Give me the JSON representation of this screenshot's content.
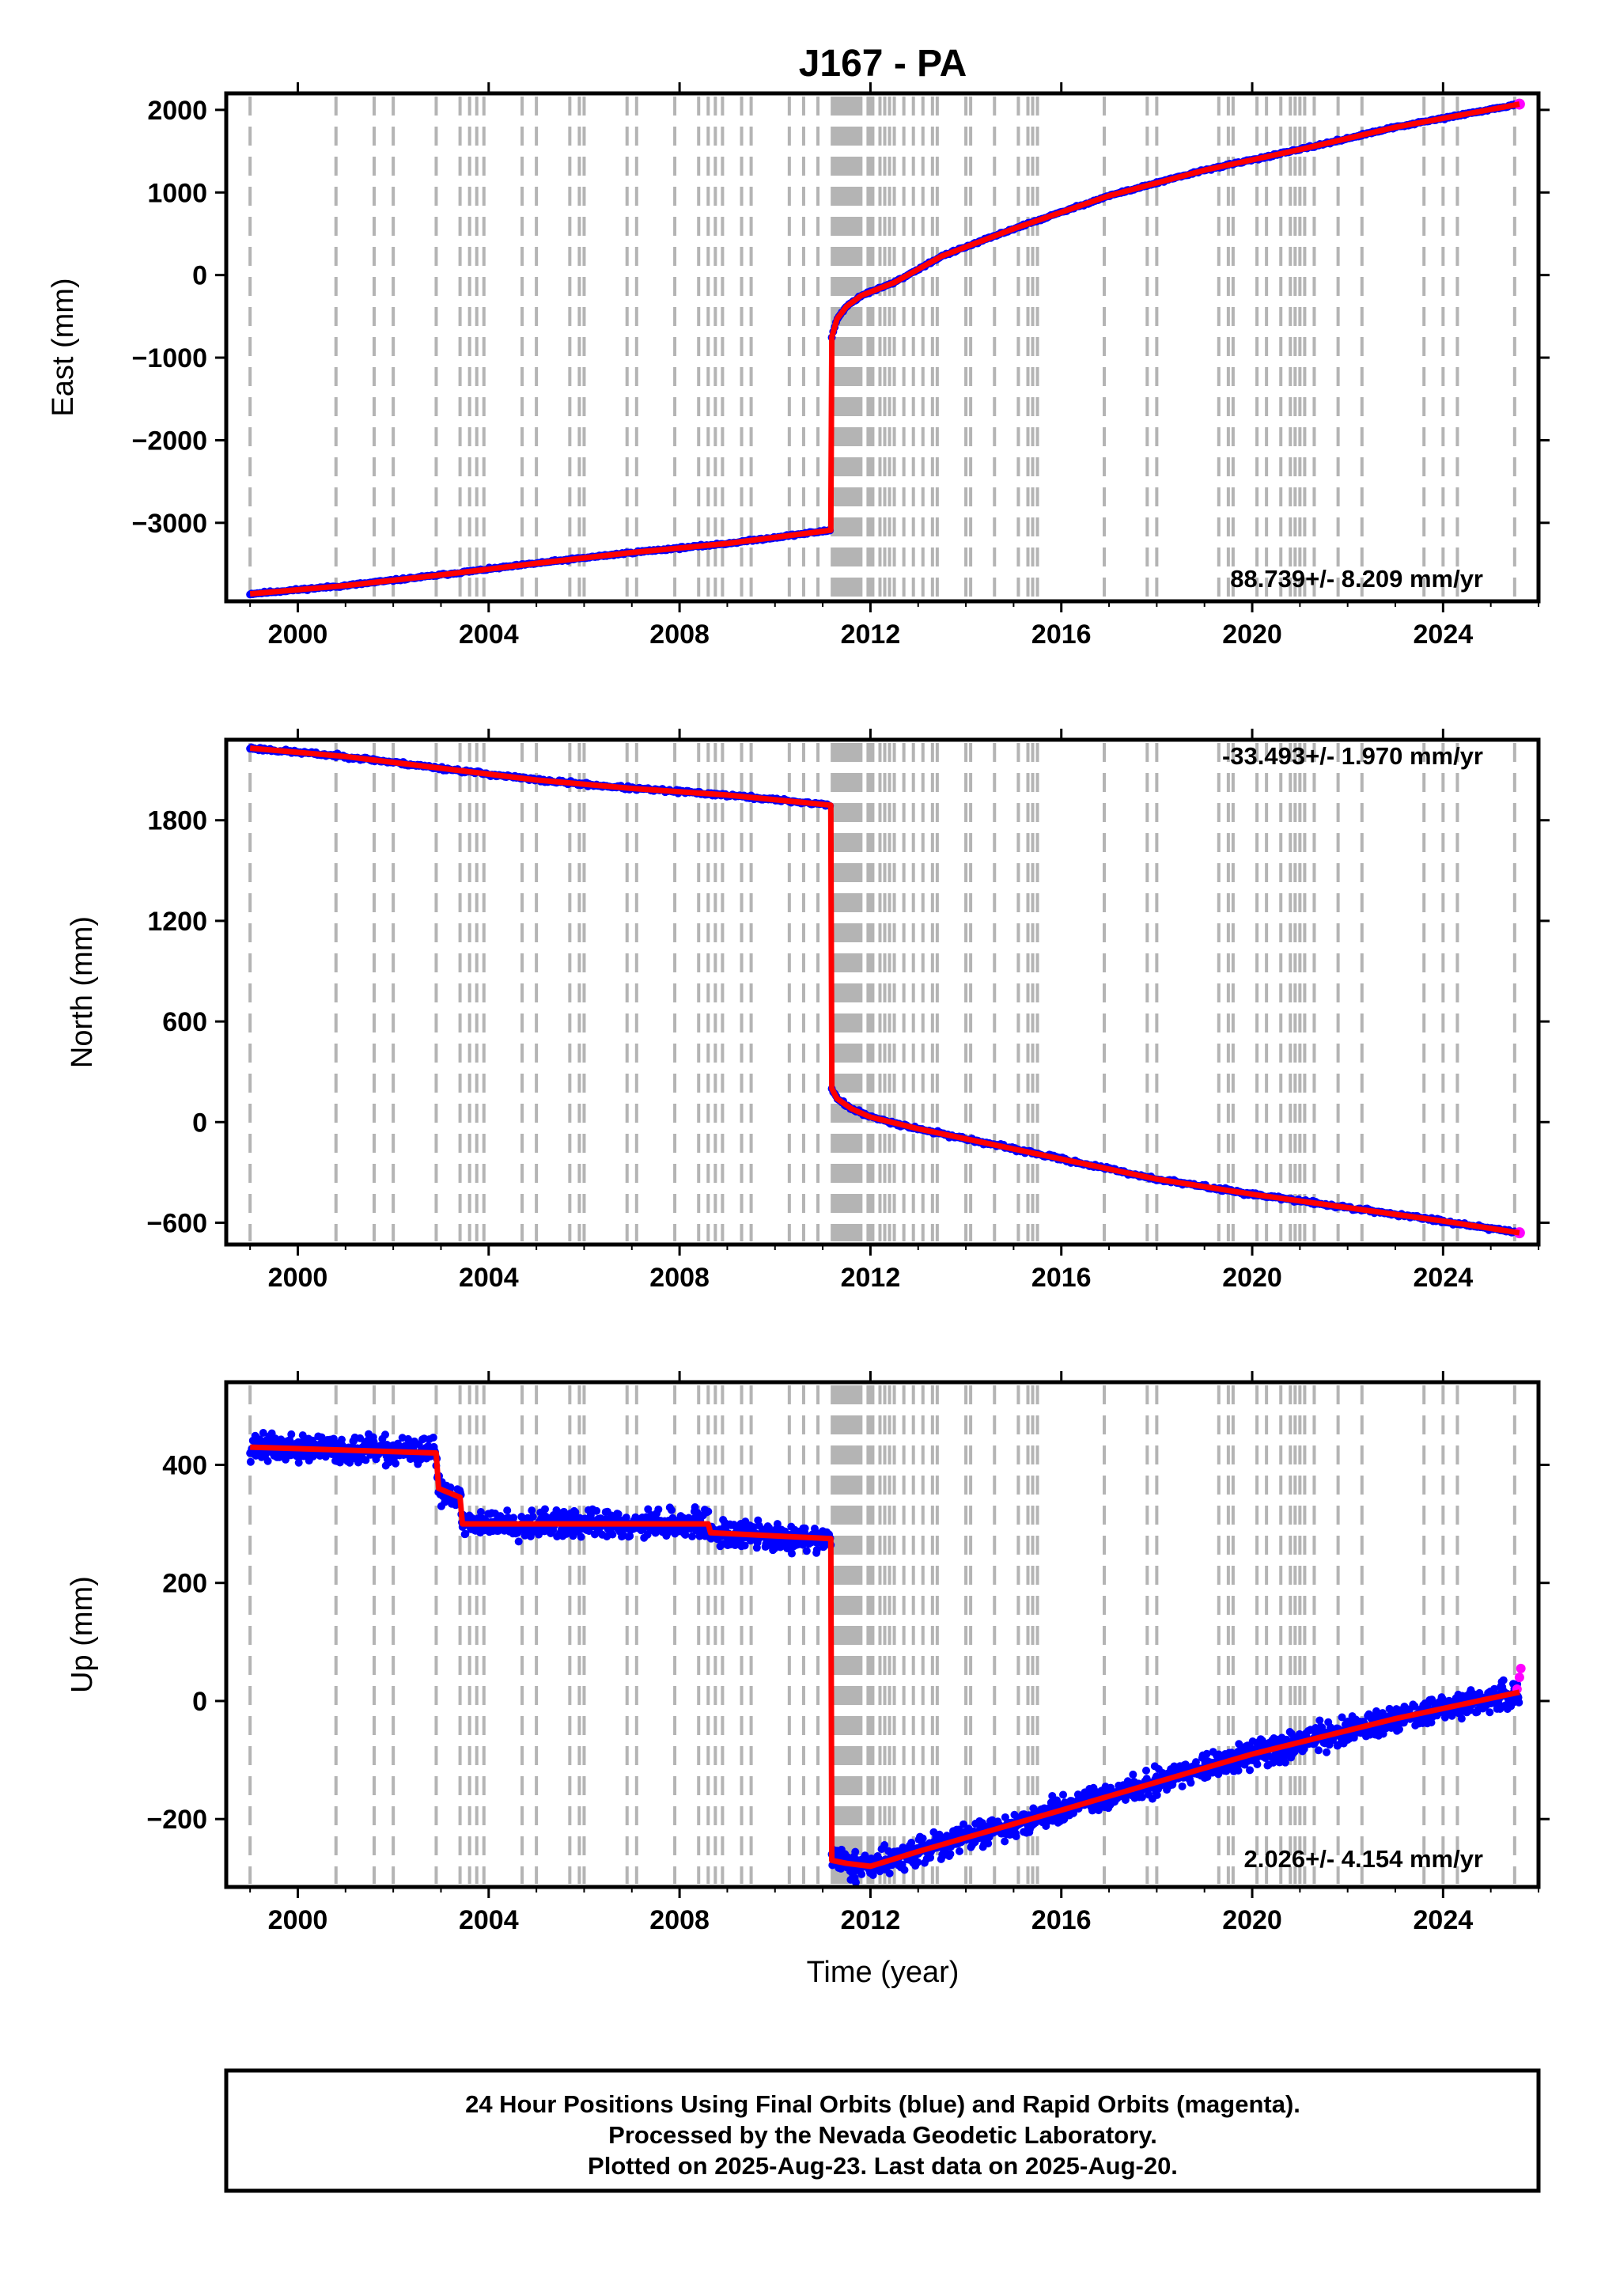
{
  "title": "J167 - PA",
  "colors": {
    "final_orbits": "#0000ff",
    "rapid_orbits": "#ff00ff",
    "model": "#ff0000",
    "event_lines": "#b4b4b4",
    "frame": "#000000"
  },
  "footer": {
    "line1": "24 Hour Positions Using Final Orbits (blue) and Rapid Orbits (magenta).",
    "line2": "Processed by the Nevada Geodetic Laboratory.",
    "line3": "Plotted on 2025-Aug-23. Last data on 2025-Aug-20."
  },
  "chart_data": [
    {
      "type": "scatter",
      "panel": "east",
      "title": "J167 - PA",
      "xlabel": "",
      "ylabel": "East (mm)",
      "xlim": [
        1998.5,
        2026.0
      ],
      "ylim": [
        -3950,
        2200
      ],
      "xticks": [
        2000,
        2004,
        2008,
        2012,
        2016,
        2020,
        2024
      ],
      "yticks": [
        -3000,
        -2000,
        -1000,
        0,
        1000,
        2000
      ],
      "rate_text": "88.739+/- 8.209 mm/yr",
      "rate_position": "bottom-right",
      "series": [
        {
          "segment": "pre-earthquake",
          "x": [
            1999.0,
            2001.0,
            2003.0,
            2005.0,
            2007.0,
            2009.0,
            2011.17
          ],
          "y": [
            -3860,
            -3760,
            -3630,
            -3490,
            -3360,
            -3250,
            -3090
          ]
        },
        {
          "segment": "post-earthquake",
          "x": [
            2011.19,
            2011.3,
            2011.5,
            2011.8,
            2012.5,
            2013.5,
            2015.0,
            2017.0,
            2019.0,
            2021.0,
            2023.0,
            2025.6
          ],
          "y": [
            -750,
            -530,
            -380,
            -250,
            -90,
            230,
            560,
            960,
            1270,
            1520,
            1790,
            2070
          ]
        }
      ]
    },
    {
      "type": "scatter",
      "panel": "north",
      "xlabel": "",
      "ylabel": "North (mm)",
      "xlim": [
        1998.5,
        2026.0
      ],
      "ylim": [
        -730,
        2280
      ],
      "xticks": [
        2000,
        2004,
        2008,
        2012,
        2016,
        2020,
        2024
      ],
      "yticks": [
        -600,
        0,
        600,
        1200,
        1800
      ],
      "rate_text": "-33.493+/- 1.970 mm/yr",
      "rate_position": "top-right",
      "series": [
        {
          "segment": "pre-earthquake",
          "x": [
            1999.0,
            2001.0,
            2003.0,
            2005.0,
            2007.0,
            2009.0,
            2011.17
          ],
          "y": [
            2230,
            2180,
            2110,
            2040,
            1990,
            1950,
            1890
          ]
        },
        {
          "segment": "post-earthquake",
          "x": [
            2011.19,
            2011.3,
            2011.6,
            2012.0,
            2013.0,
            2014.5,
            2016.0,
            2018.0,
            2020.0,
            2022.0,
            2024.0,
            2025.6
          ],
          "y": [
            200,
            140,
            80,
            30,
            -40,
            -130,
            -220,
            -340,
            -430,
            -510,
            -590,
            -660
          ]
        }
      ]
    },
    {
      "type": "scatter",
      "panel": "up",
      "xlabel": "Time (year)",
      "ylabel": "Up (mm)",
      "xlim": [
        1998.5,
        2026.0
      ],
      "ylim": [
        -315,
        540
      ],
      "xticks": [
        2000,
        2004,
        2008,
        2012,
        2016,
        2020,
        2024
      ],
      "yticks": [
        -200,
        0,
        200,
        400
      ],
      "rate_text": "2.026+/- 4.154 mm/yr",
      "rate_position": "bottom-right",
      "series": [
        {
          "segment": "pre-earthquake",
          "x": [
            1999.0,
            2002.9,
            2002.95,
            2003.4,
            2003.45,
            2008.6,
            2008.65,
            2011.17
          ],
          "y": [
            430,
            420,
            360,
            345,
            300,
            300,
            285,
            275
          ]
        },
        {
          "segment": "post-earthquake",
          "x": [
            2011.19,
            2011.5,
            2012.0,
            2013.0,
            2016.0,
            2020.0,
            2023.0,
            2025.6
          ],
          "y": [
            -270,
            -275,
            -280,
            -255,
            -185,
            -90,
            -30,
            15
          ]
        }
      ],
      "rapid_orbits": {
        "x": [
          2025.55,
          2025.6,
          2025.63
        ],
        "y": [
          20,
          40,
          55
        ]
      }
    }
  ]
}
